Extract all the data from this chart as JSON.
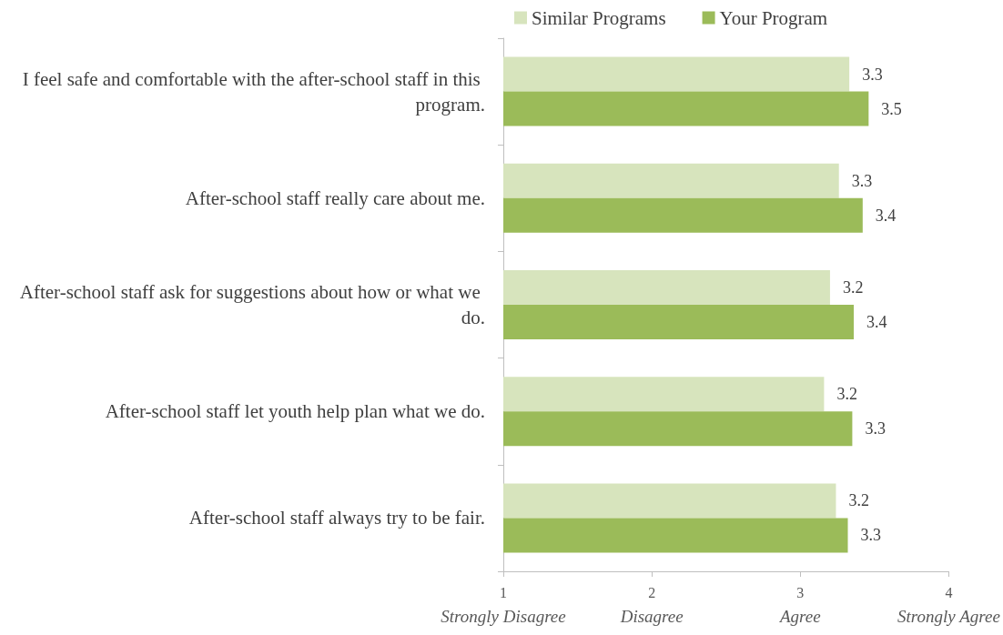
{
  "chart_data": {
    "type": "bar",
    "orientation": "horizontal",
    "categories": [
      "I feel safe and comfortable with the after-school staff in this program.",
      "After-school staff really care about me.",
      "After-school staff ask for suggestions about how or what we do.",
      "After-school staff let youth help plan what we do.",
      "After-school staff always try to be fair."
    ],
    "series": [
      {
        "name": "Similar Programs",
        "color": "#d7e4bd",
        "values": [
          3.33,
          3.26,
          3.2,
          3.16,
          3.24
        ],
        "value_labels": [
          "3.3",
          "3.3",
          "3.2",
          "3.2",
          "3.2"
        ]
      },
      {
        "name": "Your Program",
        "color": "#9bbb59",
        "values": [
          3.46,
          3.42,
          3.36,
          3.35,
          3.32
        ],
        "value_labels": [
          "3.5",
          "3.4",
          "3.4",
          "3.3",
          "3.3"
        ]
      }
    ],
    "xlim": [
      1,
      4
    ],
    "xticks": [
      {
        "value": 1,
        "label": "1\nStrongly Disagree"
      },
      {
        "value": 2,
        "label": "2\nDisagree"
      },
      {
        "value": 3,
        "label": "3\nAgree"
      },
      {
        "value": 4,
        "label": "4\nStrongly Agree"
      }
    ],
    "grid": false,
    "legend": "top"
  }
}
